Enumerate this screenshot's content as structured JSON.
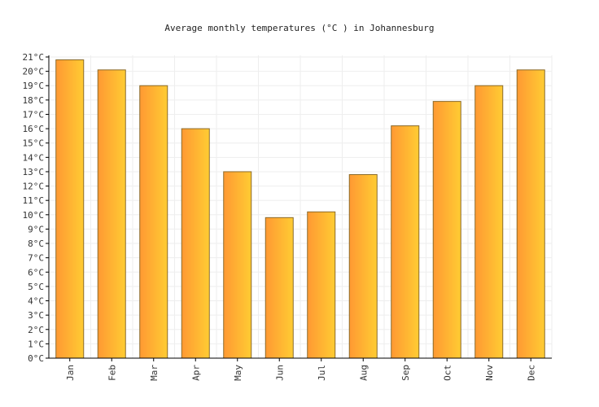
{
  "chart_data": {
    "type": "bar",
    "title": "Average monthly temperatures (°C ) in Johannesburg",
    "xlabel": "",
    "ylabel": "",
    "ylim": [
      0,
      21
    ],
    "unit_suffix": "°C",
    "categories": [
      "Jan",
      "Feb",
      "Mar",
      "Apr",
      "May",
      "Jun",
      "Jul",
      "Aug",
      "Sep",
      "Oct",
      "Nov",
      "Dec"
    ],
    "values": [
      20.8,
      20.1,
      19.0,
      16.0,
      13.0,
      9.8,
      10.2,
      12.8,
      16.2,
      17.9,
      19.0,
      20.1
    ],
    "grid": true,
    "colors": {
      "bar_left": "#ff9933",
      "bar_right": "#ffcc33",
      "bar_edge": "#8a6a2a",
      "grid": "#eeeeee",
      "axis": "#000000"
    }
  }
}
